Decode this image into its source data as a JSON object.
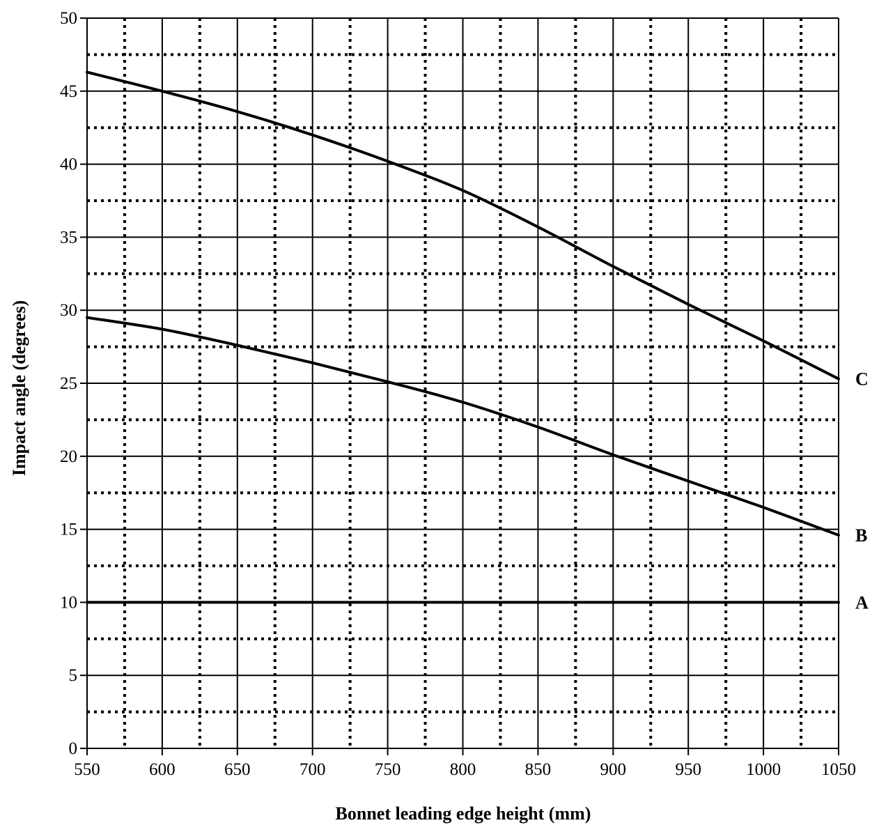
{
  "chart_data": {
    "type": "line",
    "title": "",
    "xlabel": "Bonnet leading edge height (mm)",
    "ylabel": "Impact angle (degrees)",
    "xlim": [
      550,
      1050
    ],
    "ylim": [
      0,
      50
    ],
    "x_ticks": [
      550,
      600,
      650,
      700,
      750,
      800,
      850,
      900,
      950,
      1000,
      1050
    ],
    "y_ticks": [
      0,
      5,
      10,
      15,
      20,
      25,
      30,
      35,
      40,
      45,
      50
    ],
    "x_minor_grid": [
      575,
      625,
      675,
      725,
      775,
      825,
      875,
      925,
      975,
      1025
    ],
    "y_minor_grid": [
      2.5,
      7.5,
      12.5,
      17.5,
      22.5,
      27.5,
      32.5,
      37.5,
      42.5,
      47.5
    ],
    "grid": {
      "major": "solid",
      "minor": "dotted"
    },
    "legend": "none",
    "series": [
      {
        "name": "A",
        "x": [
          550,
          1050
        ],
        "y": [
          10,
          10
        ]
      },
      {
        "name": "B",
        "x": [
          550,
          600,
          650,
          700,
          750,
          800,
          850,
          900,
          950,
          1000,
          1050
        ],
        "y": [
          29.5,
          28.7,
          27.6,
          26.4,
          25.1,
          23.7,
          22.0,
          20.1,
          18.3,
          16.5,
          14.6
        ]
      },
      {
        "name": "C",
        "x": [
          550,
          600,
          650,
          700,
          750,
          800,
          850,
          900,
          950,
          1000,
          1050
        ],
        "y": [
          46.3,
          45.0,
          43.6,
          42.0,
          40.2,
          38.2,
          35.7,
          33.0,
          30.4,
          27.9,
          25.3
        ]
      }
    ]
  }
}
